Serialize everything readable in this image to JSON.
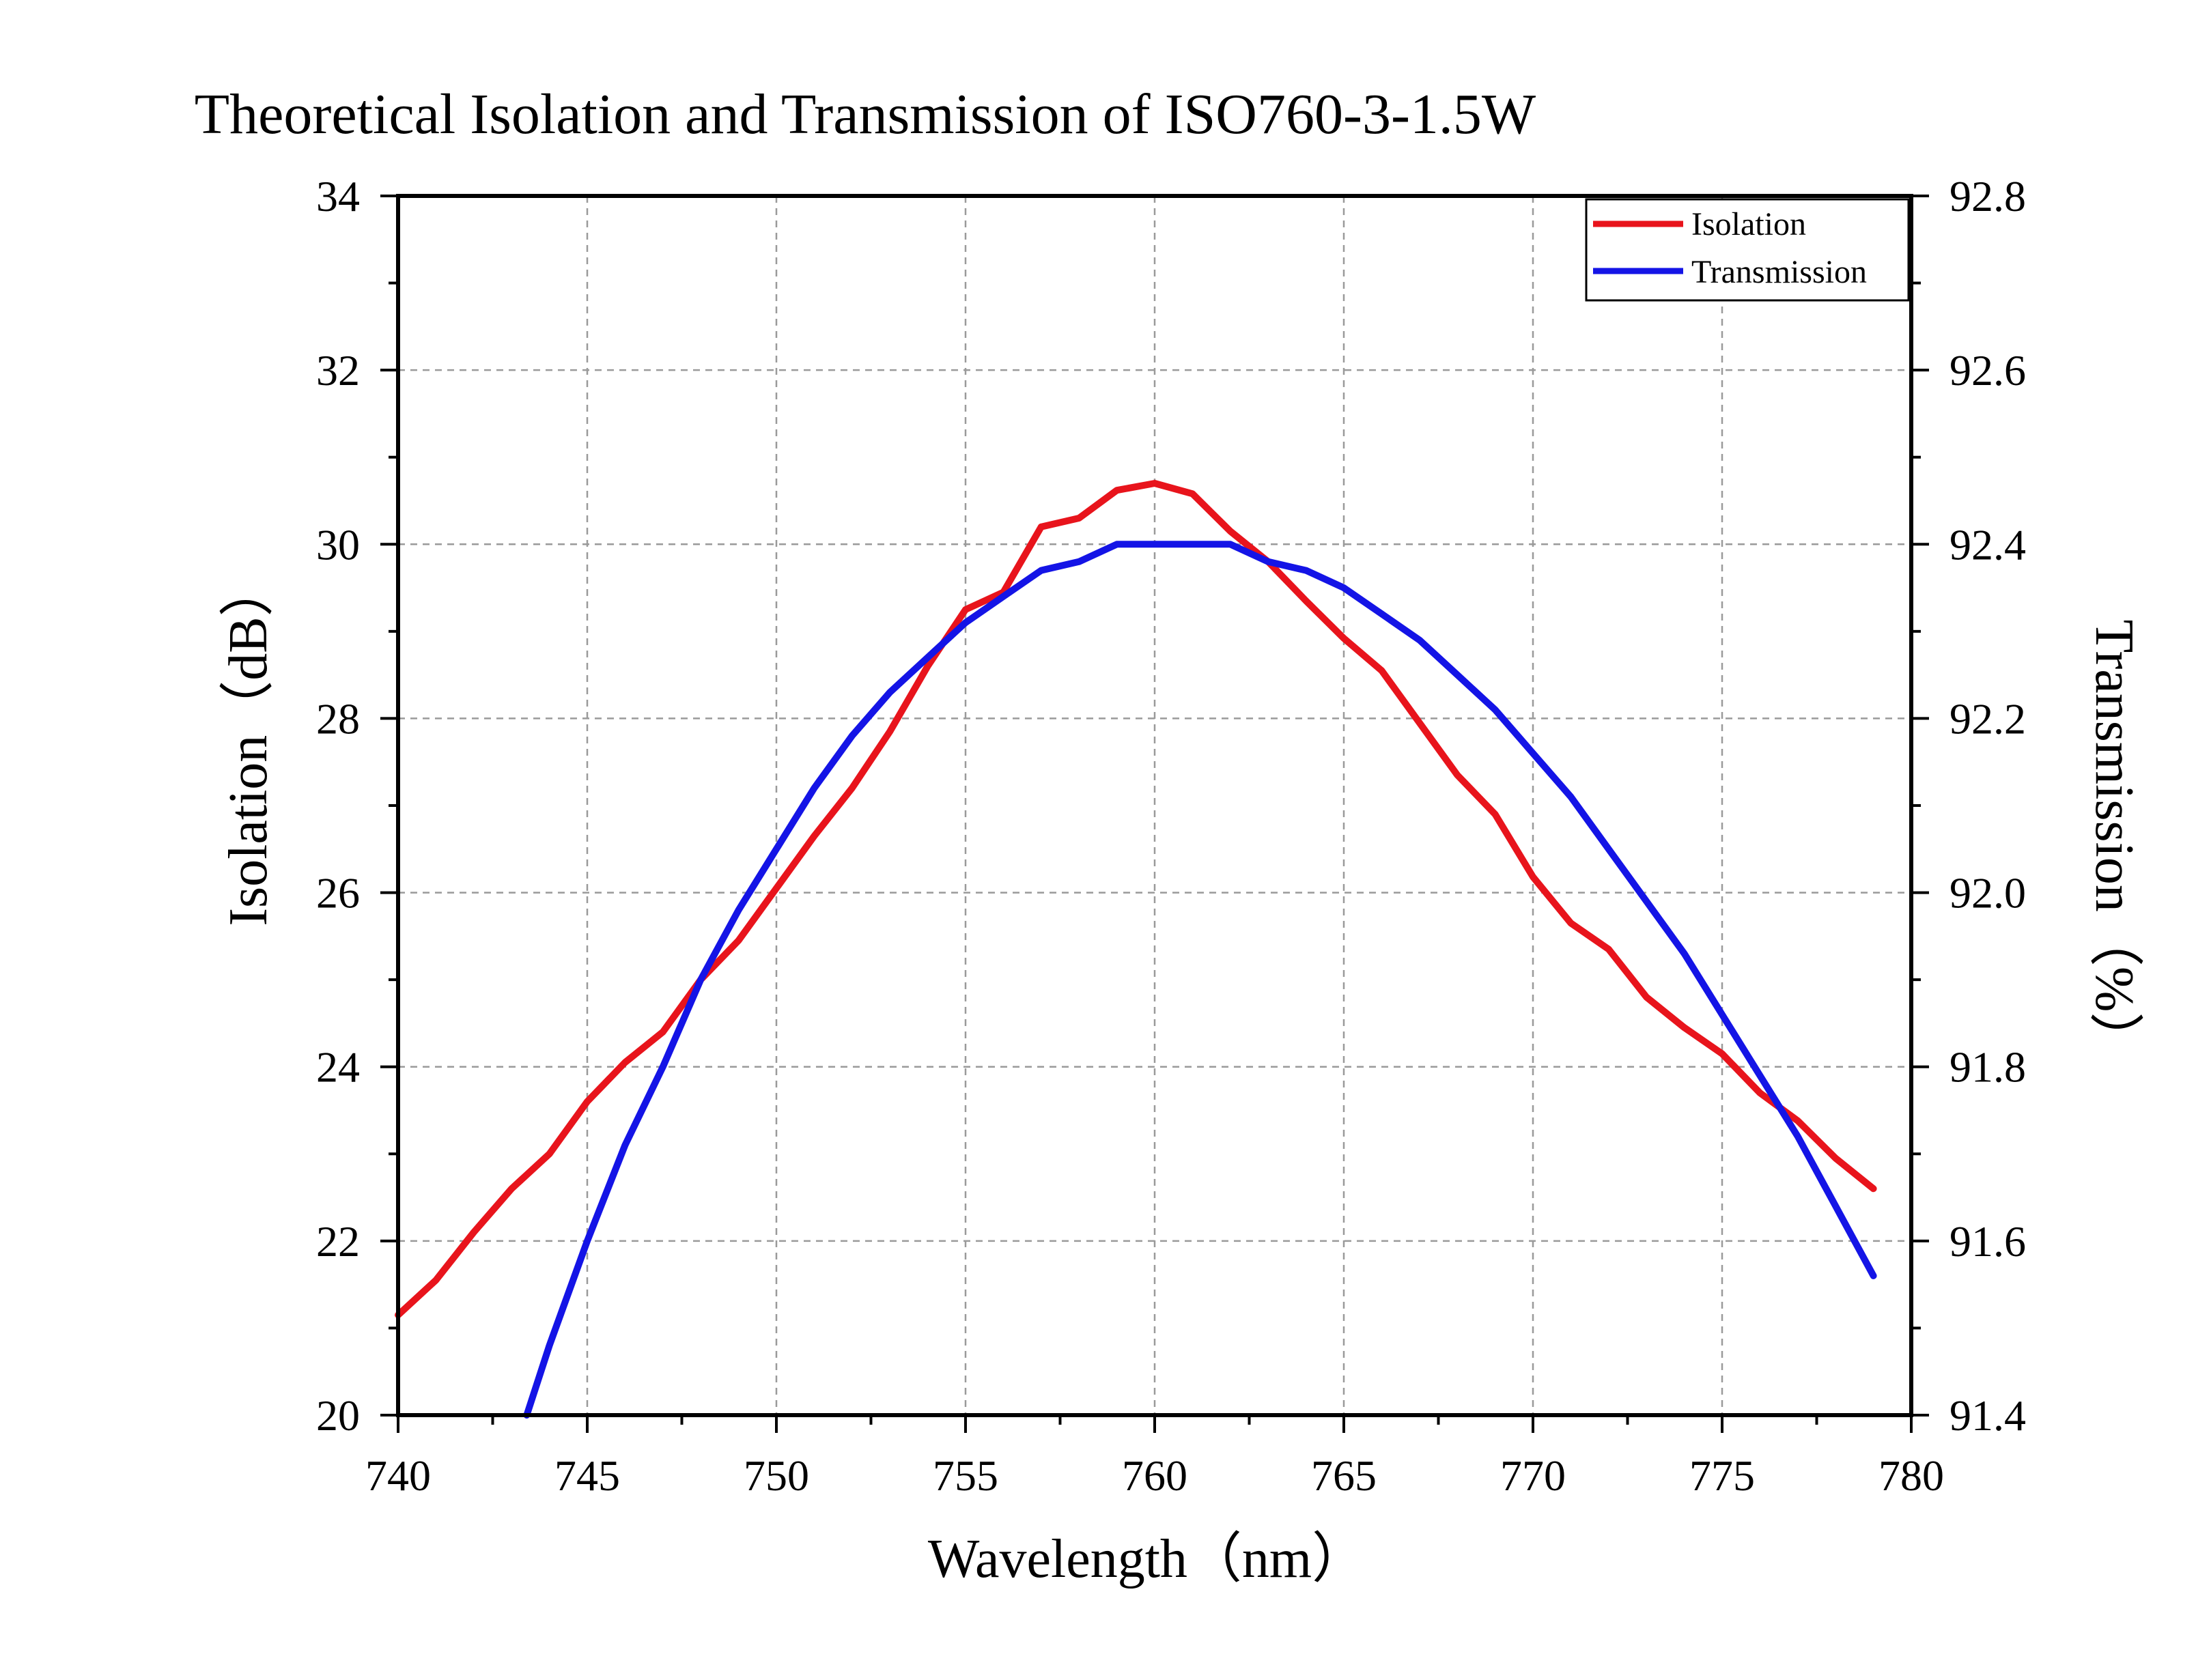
{
  "chart_data": {
    "type": "line",
    "title": "Theoretical Isolation and Transmission of ISO760-3-1.5W",
    "xlabel": "Wavelength（nm）",
    "ylabel": "Isolation（dB）",
    "y2label": "Transmission（%）",
    "xlim": [
      740,
      780
    ],
    "ylim": [
      20,
      34
    ],
    "y2lim": [
      91.4,
      92.8
    ],
    "xticks": [
      "740",
      "745",
      "750",
      "755",
      "760",
      "765",
      "770",
      "775",
      "780"
    ],
    "yticks": [
      "20",
      "22",
      "24",
      "26",
      "28",
      "30",
      "32",
      "34"
    ],
    "y2ticks": [
      "91.4",
      "91.6",
      "91.8",
      "92.0",
      "92.2",
      "92.4",
      "92.6",
      "92.8"
    ],
    "grid": true,
    "legend_position": "top-right",
    "series": [
      {
        "name": "Isolation",
        "axis": "left",
        "color": "#e8141c",
        "x": [
          740,
          741,
          742,
          743,
          744,
          745,
          746,
          747,
          748,
          749,
          750,
          751,
          752,
          753,
          754,
          755,
          756,
          757,
          758,
          759,
          760,
          761,
          762,
          763,
          764,
          765,
          766,
          767,
          768,
          769,
          770,
          771,
          772,
          773,
          774,
          775,
          776,
          777,
          778,
          779
        ],
        "y": [
          21.15,
          21.55,
          22.1,
          22.6,
          23.0,
          23.6,
          24.05,
          24.4,
          25.0,
          25.45,
          26.05,
          26.65,
          27.2,
          27.85,
          28.6,
          29.25,
          29.45,
          30.2,
          30.3,
          30.62,
          30.7,
          30.58,
          30.15,
          29.8,
          29.35,
          28.92,
          28.55,
          27.95,
          27.35,
          26.9,
          26.18,
          25.65,
          25.35,
          24.8,
          24.45,
          24.15,
          23.7,
          23.38,
          22.95,
          22.6
        ]
      },
      {
        "name": "Transmission",
        "axis": "right",
        "color": "#1414e6",
        "x": [
          743.4,
          744,
          745,
          746,
          747,
          748,
          749,
          750,
          751,
          752,
          753,
          754,
          755,
          756,
          757,
          758,
          759,
          760,
          761,
          762,
          763,
          764,
          765,
          766,
          767,
          768,
          769,
          770,
          771,
          772,
          773,
          774,
          775,
          776,
          777,
          778,
          779
        ],
        "y": [
          91.4,
          91.48,
          91.6,
          91.71,
          91.8,
          91.9,
          91.98,
          92.05,
          92.12,
          92.18,
          92.23,
          92.27,
          92.31,
          92.34,
          92.37,
          92.38,
          92.4,
          92.4,
          92.4,
          92.4,
          92.38,
          92.37,
          92.35,
          92.32,
          92.29,
          92.25,
          92.21,
          92.16,
          92.11,
          92.05,
          91.99,
          91.93,
          91.86,
          91.79,
          91.72,
          91.64,
          91.56
        ]
      }
    ]
  }
}
